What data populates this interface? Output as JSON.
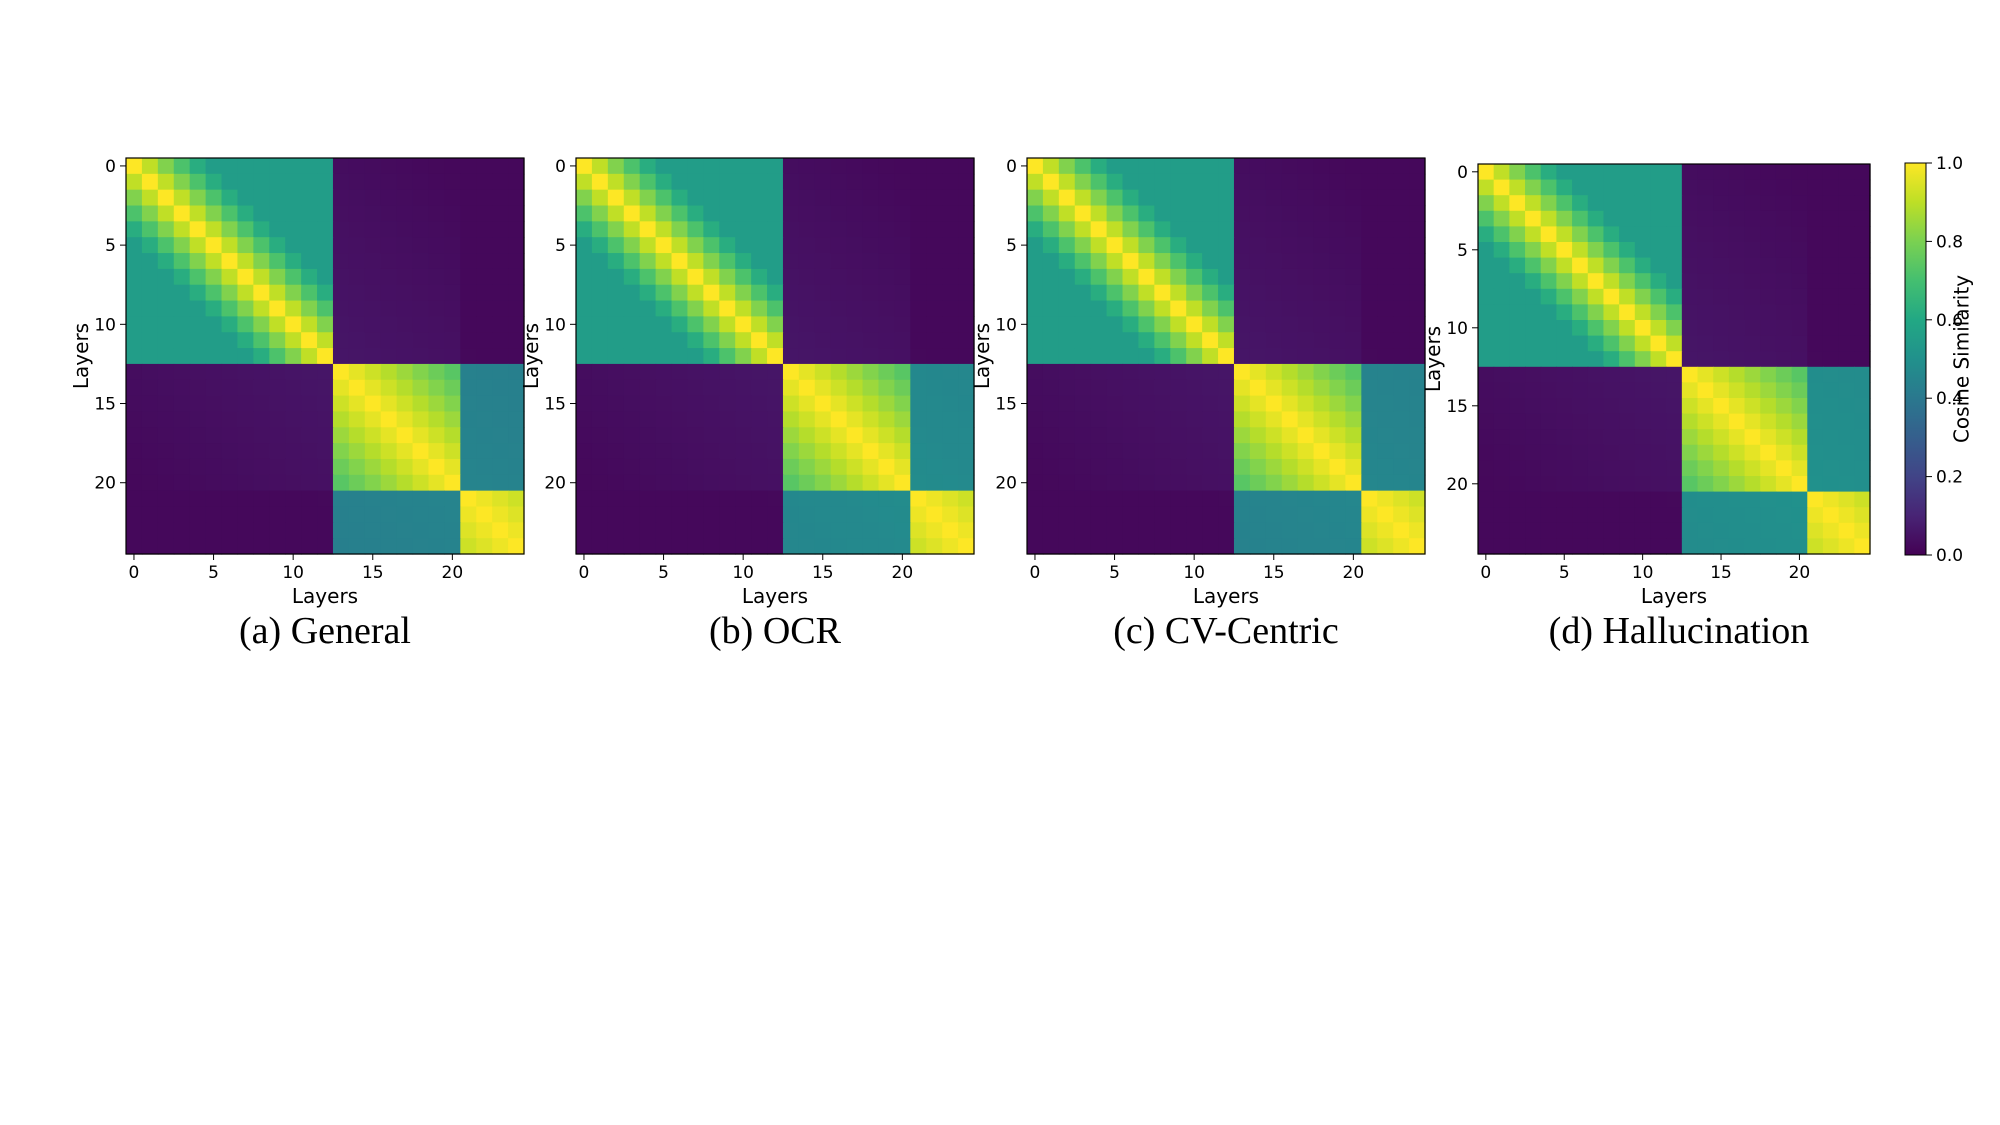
{
  "chart_data": [
    {
      "type": "heatmap",
      "caption": "(a) General",
      "xlabel": "Layers",
      "ylabel": "Layers",
      "size": 25,
      "xticks": [
        0,
        5,
        10,
        15,
        20
      ],
      "yticks": [
        0,
        5,
        10,
        15,
        20
      ],
      "clim": [
        0.0,
        1.0
      ],
      "blocks": [
        [
          0,
          12
        ],
        [
          13,
          20
        ],
        [
          21,
          24
        ]
      ],
      "block_base": [
        [
          0.55,
          0.62
        ],
        [
          0.72,
          0.85
        ],
        [
          0.78,
          0.9
        ]
      ],
      "cross_block": [
        [
          1.0,
          0.06,
          0.04
        ],
        [
          0.06,
          1.0,
          0.45
        ],
        [
          0.04,
          0.45,
          1.0
        ]
      ],
      "decay": 0.085
    },
    {
      "type": "heatmap",
      "caption": "(b) OCR",
      "xlabel": "Layers",
      "ylabel": "Layers",
      "size": 25,
      "xticks": [
        0,
        5,
        10,
        15,
        20
      ],
      "yticks": [
        0,
        5,
        10,
        15,
        20
      ],
      "clim": [
        0.0,
        1.0
      ],
      "blocks": [
        [
          0,
          12
        ],
        [
          13,
          20
        ],
        [
          21,
          24
        ]
      ],
      "block_base": [
        [
          0.55,
          0.62
        ],
        [
          0.72,
          0.85
        ],
        [
          0.78,
          0.9
        ]
      ],
      "cross_block": [
        [
          1.0,
          0.06,
          0.04
        ],
        [
          0.06,
          1.0,
          0.48
        ],
        [
          0.04,
          0.48,
          1.0
        ]
      ],
      "decay": 0.085
    },
    {
      "type": "heatmap",
      "caption": "(c) CV-Centric",
      "xlabel": "Layers",
      "ylabel": "Layers",
      "size": 25,
      "xticks": [
        0,
        5,
        10,
        15,
        20
      ],
      "yticks": [
        0,
        5,
        10,
        15,
        20
      ],
      "clim": [
        0.0,
        1.0
      ],
      "blocks": [
        [
          0,
          12
        ],
        [
          13,
          20
        ],
        [
          21,
          24
        ]
      ],
      "block_base": [
        [
          0.55,
          0.62
        ],
        [
          0.72,
          0.85
        ],
        [
          0.78,
          0.9
        ]
      ],
      "cross_block": [
        [
          1.0,
          0.06,
          0.04
        ],
        [
          0.06,
          1.0,
          0.46
        ],
        [
          0.04,
          0.46,
          1.0
        ]
      ],
      "decay": 0.085
    },
    {
      "type": "heatmap",
      "caption": "(d) Hallucination",
      "xlabel": "Layers",
      "ylabel": "Layers",
      "size": 25,
      "xticks": [
        0,
        5,
        10,
        15,
        20
      ],
      "yticks": [
        0,
        5,
        10,
        15,
        20
      ],
      "clim": [
        0.0,
        1.0
      ],
      "blocks": [
        [
          0,
          12
        ],
        [
          13,
          20
        ],
        [
          21,
          24
        ]
      ],
      "block_base": [
        [
          0.55,
          0.62
        ],
        [
          0.72,
          0.85
        ],
        [
          0.78,
          0.9
        ]
      ],
      "cross_block": [
        [
          1.0,
          0.06,
          0.04
        ],
        [
          0.06,
          1.0,
          0.5
        ],
        [
          0.04,
          0.5,
          1.0
        ]
      ],
      "decay": 0.085
    }
  ],
  "colorbar": {
    "label": "Cosine Similarity",
    "ticks": [
      "0.0",
      "0.2",
      "0.4",
      "0.6",
      "0.8",
      "1.0"
    ],
    "tick_values": [
      0.0,
      0.2,
      0.4,
      0.6,
      0.8,
      1.0
    ],
    "colormap": "viridis"
  }
}
